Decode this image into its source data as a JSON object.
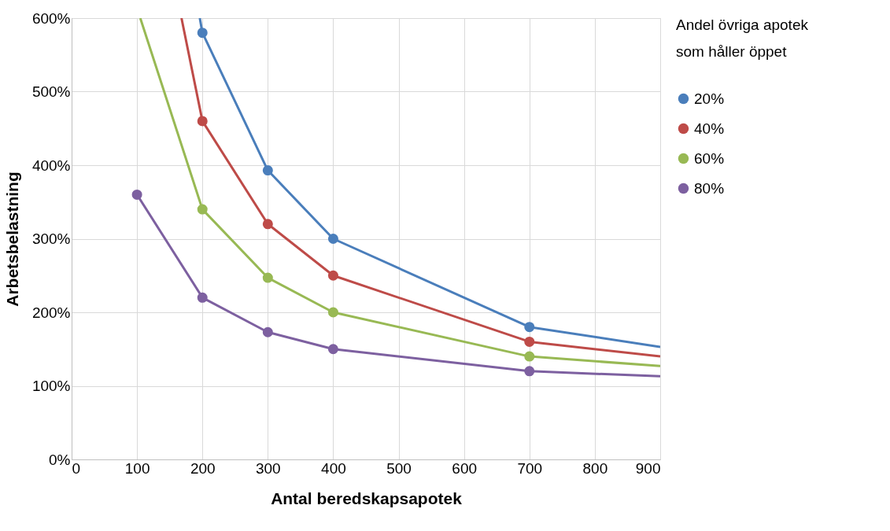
{
  "chart_data": {
    "type": "line",
    "xlabel": "Antal beredskapsapotek",
    "ylabel": "Arbetsbelastning",
    "legend_title": "Andel övriga apotek som håller öppet",
    "legend": "right",
    "marker": "circle",
    "line_style": "solid",
    "grid": true,
    "xlim": [
      0,
      900
    ],
    "xticks": [
      0,
      100,
      200,
      300,
      400,
      500,
      600,
      700,
      800,
      900
    ],
    "ylim": [
      0,
      600
    ],
    "yticks": [
      {
        "value": 0,
        "label": "0%"
      },
      {
        "value": 100,
        "label": "100%"
      },
      {
        "value": 200,
        "label": "200%"
      },
      {
        "value": 300,
        "label": "300%"
      },
      {
        "value": 400,
        "label": "400%"
      },
      {
        "value": 500,
        "label": "500%"
      },
      {
        "value": 600,
        "label": "600%"
      }
    ],
    "series": [
      {
        "name": "20%",
        "color": "#4a7ebb",
        "x": [
          196,
          200,
          300,
          400,
          700,
          900
        ],
        "values": [
          600,
          580,
          393,
          300,
          180,
          153
        ]
      },
      {
        "name": "40%",
        "color": "#be4b48",
        "x": [
          168,
          200,
          300,
          400,
          700,
          900
        ],
        "values": [
          600,
          460,
          320,
          250,
          160,
          140
        ]
      },
      {
        "name": "60%",
        "color": "#98b954",
        "x": [
          105,
          200,
          300,
          400,
          700,
          900
        ],
        "values": [
          600,
          340,
          247,
          200,
          140,
          127
        ]
      },
      {
        "name": "80%",
        "color": "#7d60a0",
        "x": [
          100,
          200,
          300,
          400,
          700,
          900
        ],
        "values": [
          360,
          220,
          173,
          150,
          120,
          113
        ]
      }
    ]
  }
}
